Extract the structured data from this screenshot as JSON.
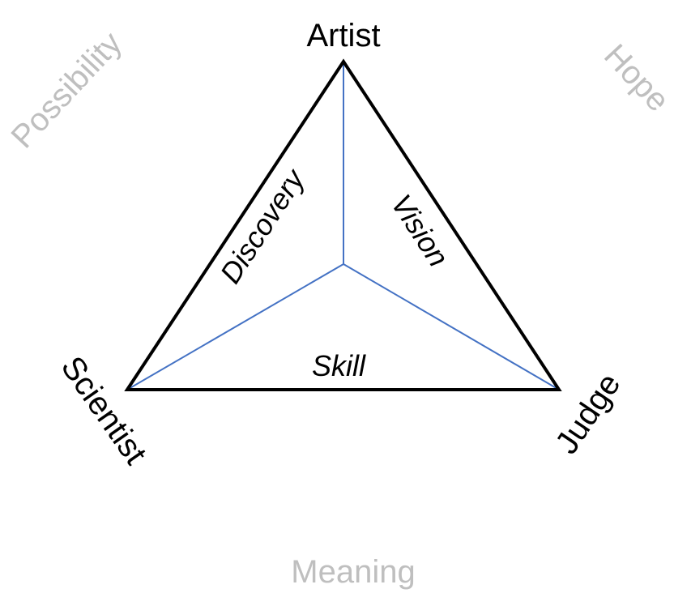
{
  "vertices": {
    "top": "Artist",
    "left": "Scientist",
    "right": "Judge"
  },
  "edges": {
    "left": "Discovery",
    "right": "Vision",
    "bottom": "Skill"
  },
  "outer": {
    "top_left": "Possibility",
    "top_right": "Hope",
    "bottom": "Meaning"
  },
  "colors": {
    "triangle_stroke": "#000000",
    "inner_lines": "#4472c4",
    "outer_text": "#bfbfbf"
  }
}
